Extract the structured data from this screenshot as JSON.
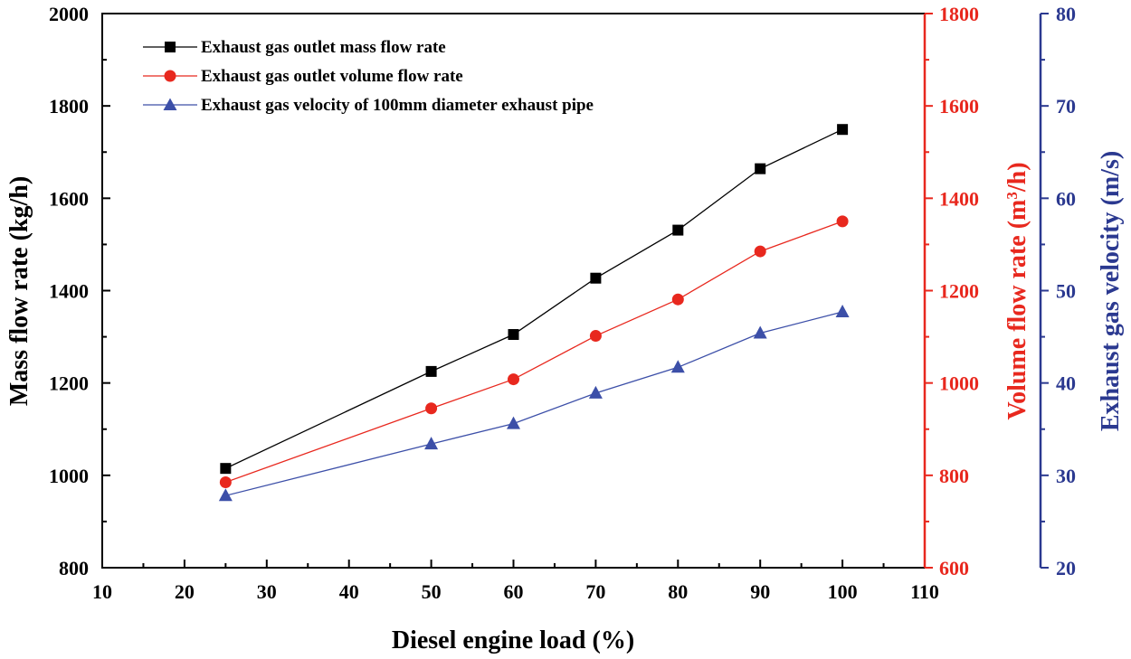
{
  "chart_data": {
    "type": "line",
    "x": [
      25,
      50,
      60,
      70,
      80,
      90,
      100
    ],
    "xlabel": "Diesel engine load (%)",
    "xlim": [
      10,
      110
    ],
    "xticks": [
      10,
      20,
      30,
      40,
      50,
      60,
      70,
      80,
      90,
      100,
      110
    ],
    "axes": {
      "left": {
        "label": "Mass flow rate (kg/h)",
        "lim": [
          800,
          2000
        ],
        "ticks": [
          800,
          1000,
          1200,
          1400,
          1600,
          1800,
          2000
        ],
        "color": "#000000"
      },
      "right1": {
        "label_main": "Volume flow rate (m",
        "label_sup": "3",
        "label_tail": "/h)",
        "lim": [
          600,
          1800
        ],
        "ticks": [
          600,
          800,
          1000,
          1200,
          1400,
          1600,
          1800
        ],
        "color": "#e8281e"
      },
      "right2": {
        "label": "Exhaust gas velocity (m/s)",
        "lim": [
          20,
          80
        ],
        "ticks": [
          20,
          30,
          40,
          50,
          60,
          70,
          80
        ],
        "color": "#2b3990"
      }
    },
    "series": [
      {
        "name": "Exhaust gas outlet mass flow rate",
        "axis": "left",
        "marker": "square",
        "color": "#000000",
        "values": [
          1015,
          1225,
          1305,
          1427,
          1531,
          1664,
          1749
        ]
      },
      {
        "name": "Exhaust gas outlet volume flow rate",
        "axis": "right1",
        "marker": "circle",
        "color": "#e8281e",
        "values": [
          785,
          945,
          1008,
          1102,
          1181,
          1285,
          1350
        ]
      },
      {
        "name": "Exhaust gas velocity of 100mm diameter exhaust pipe",
        "axis": "right2",
        "marker": "triangle",
        "color": "#3c4fa8",
        "values": [
          27.8,
          33.4,
          35.6,
          38.9,
          41.7,
          45.4,
          47.7
        ]
      }
    ],
    "legend_position": "top-left",
    "grid": false
  }
}
